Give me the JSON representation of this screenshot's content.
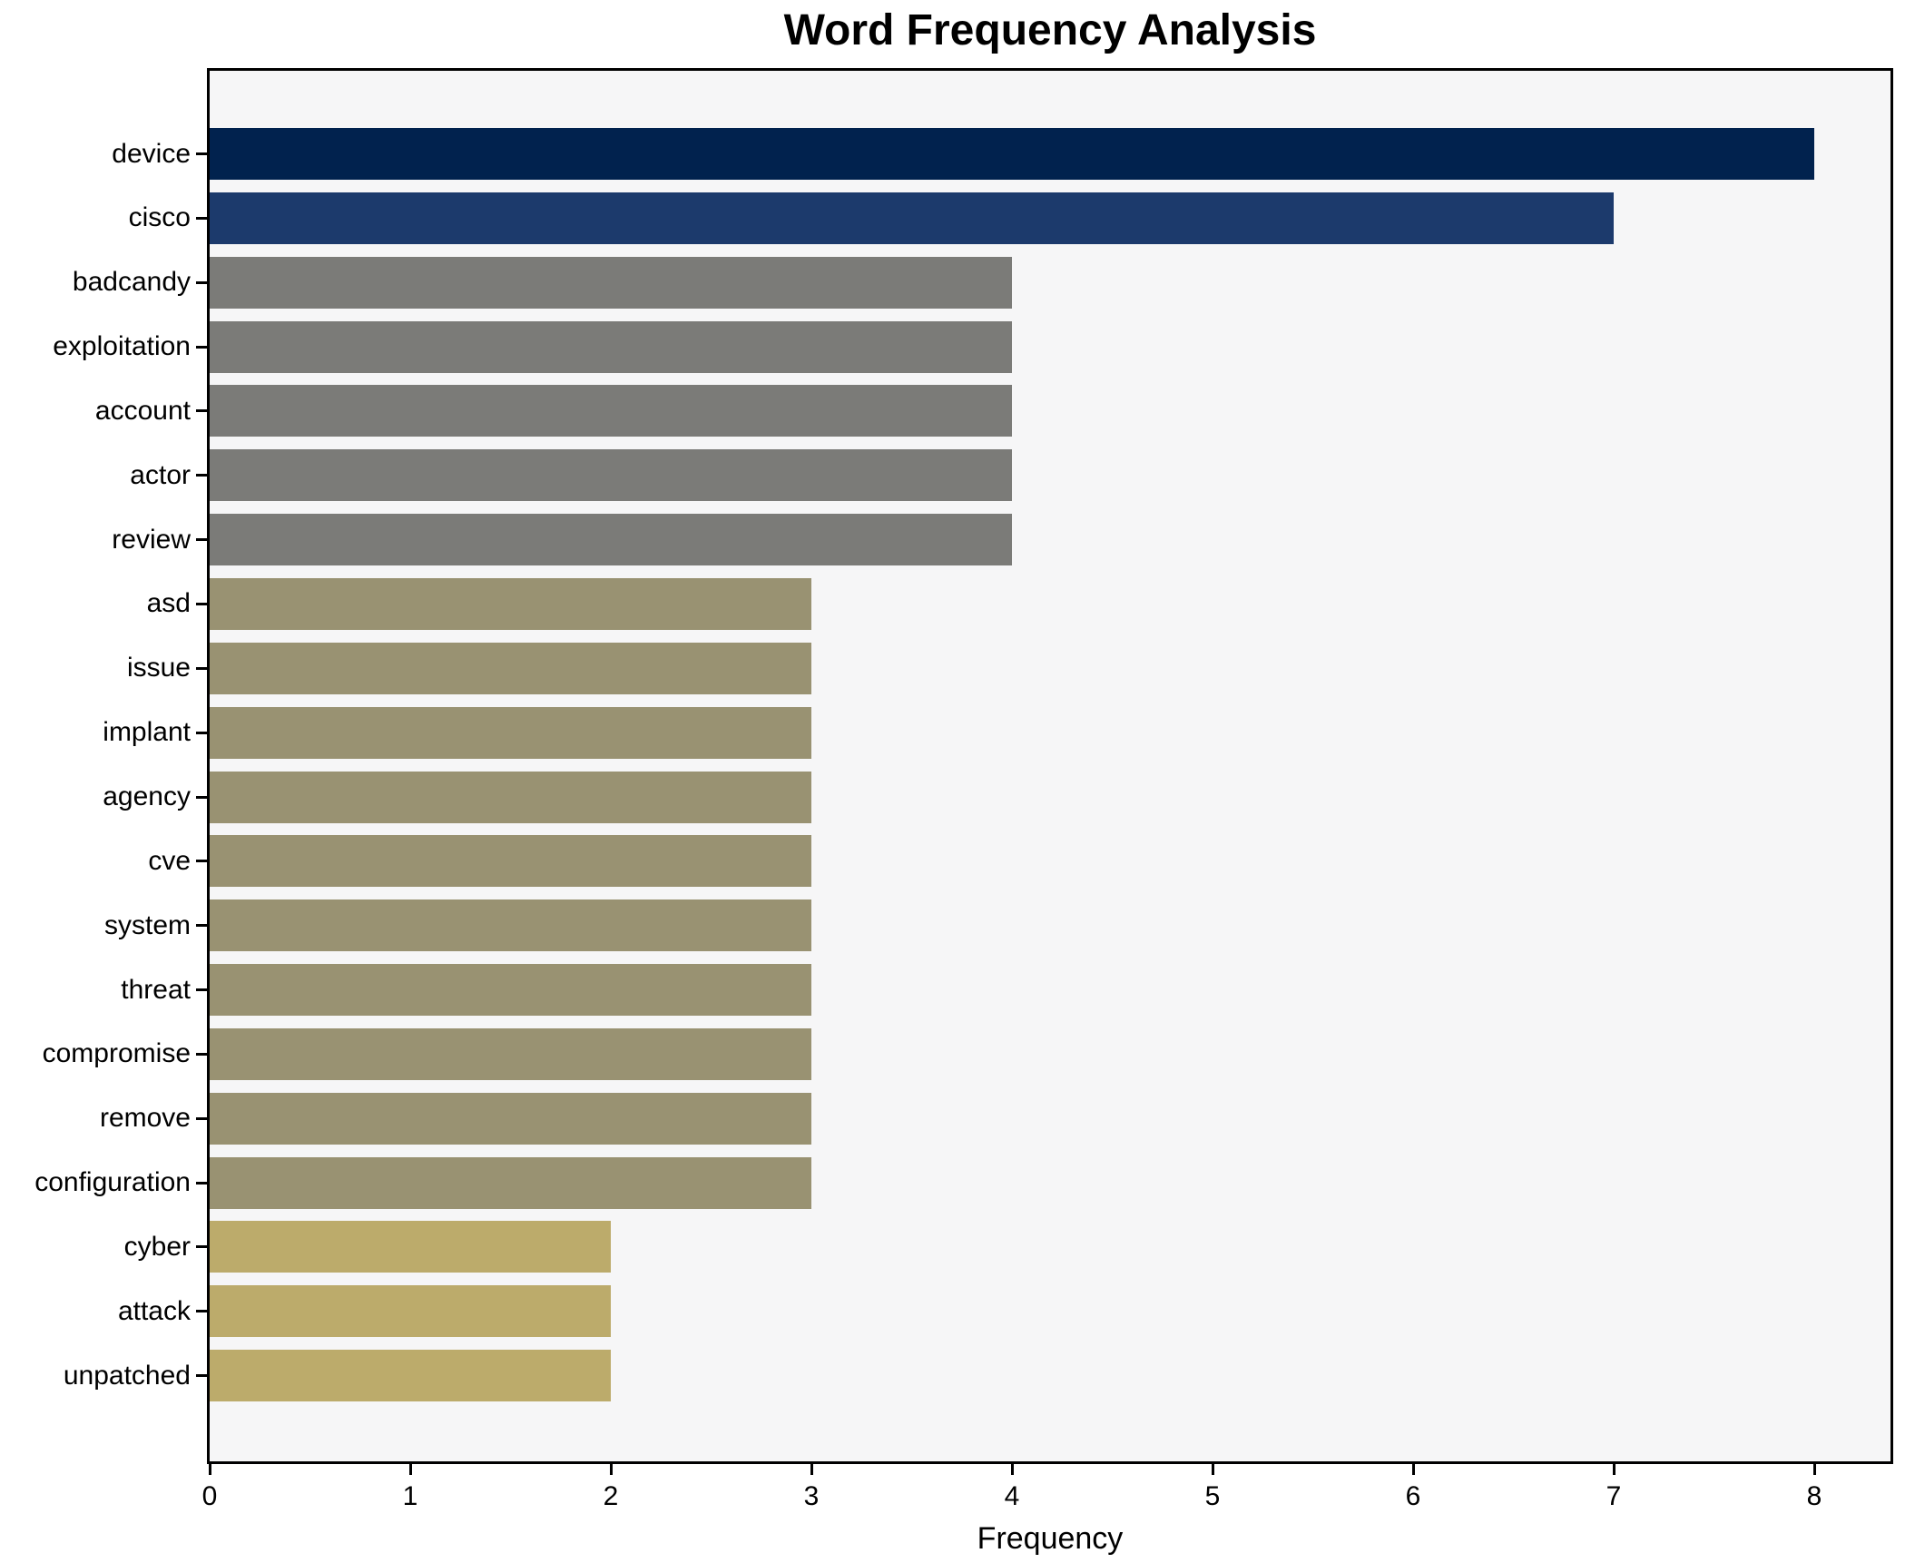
{
  "chart_data": {
    "type": "bar",
    "orientation": "horizontal",
    "title": "Word Frequency Analysis",
    "xlabel": "Frequency",
    "ylabel": "",
    "categories": [
      "device",
      "cisco",
      "badcandy",
      "exploitation",
      "account",
      "actor",
      "review",
      "asd",
      "issue",
      "implant",
      "agency",
      "cve",
      "system",
      "threat",
      "compromise",
      "remove",
      "configuration",
      "cyber",
      "attack",
      "unpatched"
    ],
    "values": [
      8,
      7,
      4,
      4,
      4,
      4,
      4,
      3,
      3,
      3,
      3,
      3,
      3,
      3,
      3,
      3,
      3,
      2,
      2,
      2
    ],
    "x_ticks": [
      0,
      1,
      2,
      3,
      4,
      5,
      6,
      7,
      8
    ],
    "xlim": [
      0,
      8.38
    ],
    "grid": false,
    "legend": null,
    "colors_by_value": {
      "8": "#01224e",
      "7": "#1c3a6c",
      "4": "#7b7b78",
      "3": "#999272",
      "2": "#bcab6b"
    },
    "plot_background": "#f6f6f7",
    "spine_color": "#000000",
    "figure_background": "#ffffff"
  }
}
